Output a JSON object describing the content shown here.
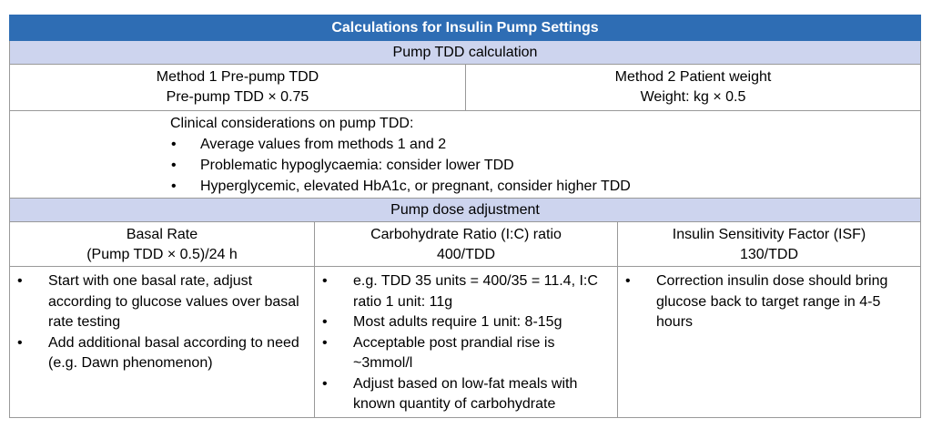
{
  "table": {
    "title": "Calculations for Insulin Pump Settings",
    "tdd_header": "Pump TDD calculation",
    "methods": [
      {
        "name": "Method 1 Pre-pump TDD",
        "formula": "Pre-pump TDD × 0.75"
      },
      {
        "name": "Method 2 Patient weight",
        "formula": "Weight: kg × 0.5"
      }
    ],
    "clinical": {
      "heading": "Clinical considerations on pump TDD:",
      "items": [
        "Average values from methods 1 and 2",
        "Problematic hypoglycaemia: consider lower TDD",
        "Hyperglycemic, elevated HbA1c, or pregnant, consider higher TDD"
      ]
    },
    "adjust_header": "Pump dose adjustment",
    "columns": [
      {
        "name": "Basal Rate",
        "formula": "(Pump TDD × 0.5)/24 h",
        "items": [
          "Start with one basal rate, adjust according to glucose values over basal rate testing",
          "Add additional basal according to need (e.g. Dawn phenomenon)"
        ]
      },
      {
        "name": "Carbohydrate Ratio (I:C) ratio",
        "formula": "400/TDD",
        "items": [
          "e.g. TDD 35 units = 400/35 = 11.4, I:C ratio 1 unit: 11g",
          "Most adults require 1 unit: 8-15g",
          "Acceptable post prandial rise is ~3mmol/l",
          "Adjust based on low-fat meals with known quantity of carbohydrate"
        ]
      },
      {
        "name": "Insulin Sensitivity Factor (ISF)",
        "formula": "130/TDD",
        "items": [
          "Correction insulin dose should bring glucose back to target range in 4-5 hours"
        ]
      }
    ]
  }
}
